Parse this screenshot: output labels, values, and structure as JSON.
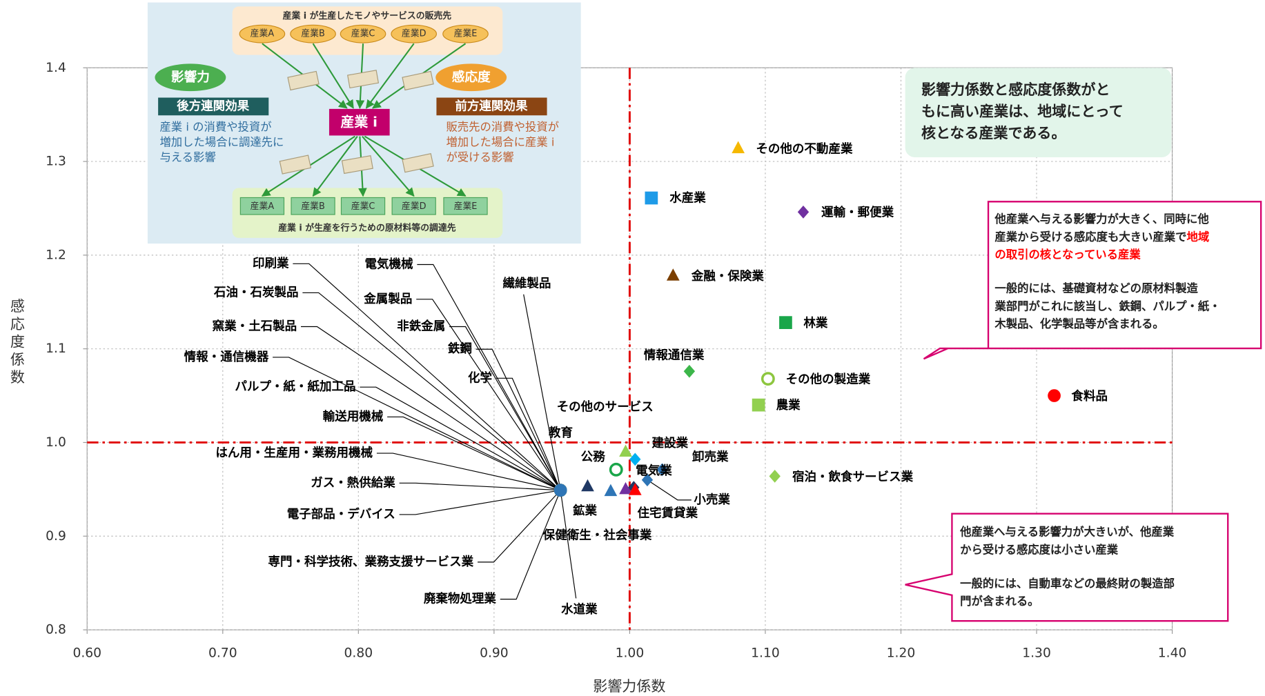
{
  "diagram": {
    "top_title": "産業 i が生産したモノやサービスの販売先",
    "top_nodes": [
      "産業A",
      "産業B",
      "産業C",
      "産業D",
      "産業E"
    ],
    "center": "産業 i",
    "bottom_nodes": [
      "産業A",
      "産業B",
      "産業C",
      "産業D",
      "産業E"
    ],
    "bottom_title": "産業 i が生産を行うための原材料等の調達先",
    "left": {
      "badge": "影響力",
      "heading": "後方連関効果",
      "text": [
        "産業 i の消費や投資が",
        "増加した場合に調達先に",
        "与える影響"
      ]
    },
    "right": {
      "badge": "感応度",
      "heading": "前方連関効果",
      "text": [
        "販売先の消費や投資が",
        "増加した場合に産業 i",
        "が受ける影響"
      ]
    }
  },
  "chart_data": {
    "type": "scatter",
    "xlabel": "影響力係数",
    "ylabel": "感応度係数",
    "xlim": [
      0.6,
      1.4
    ],
    "ylim": [
      0.8,
      1.4
    ],
    "xticks": [
      {
        "value": 0.6,
        "label": "0.60"
      },
      {
        "value": 0.7,
        "label": "0.70"
      },
      {
        "value": 0.8,
        "label": "0.80"
      },
      {
        "value": 0.9,
        "label": "0.90"
      },
      {
        "value": 1.0,
        "label": "1.00"
      },
      {
        "value": 1.1,
        "label": "1.10"
      },
      {
        "value": 1.2,
        "label": "1.20"
      },
      {
        "value": 1.3,
        "label": "1.30"
      },
      {
        "value": 1.4,
        "label": "1.40"
      }
    ],
    "yticks": [
      {
        "value": 0.8,
        "label": "0.8"
      },
      {
        "value": 0.9,
        "label": "0.9"
      },
      {
        "value": 1.0,
        "label": "1.0"
      },
      {
        "value": 1.1,
        "label": "1.1"
      },
      {
        "value": 1.2,
        "label": "1.2"
      },
      {
        "value": 1.3,
        "label": "1.3"
      },
      {
        "value": 1.4,
        "label": "1.4"
      }
    ],
    "grid": true,
    "ref_x": 1.0,
    "ref_y": 1.0,
    "ref_color": "#e00000",
    "points": [
      {
        "name": "その他の不動産業",
        "x": 1.08,
        "y": 1.314,
        "marker": "triangle",
        "color": "#f5b800"
      },
      {
        "name": "水産業",
        "x": 1.016,
        "y": 1.261,
        "marker": "square",
        "color": "#1e9be8"
      },
      {
        "name": "運輸・郵便業",
        "x": 1.128,
        "y": 1.246,
        "marker": "diamond",
        "color": "#7030a0"
      },
      {
        "name": "金融・保険業",
        "x": 1.032,
        "y": 1.178,
        "marker": "triangle",
        "color": "#7b3f00"
      },
      {
        "name": "林業",
        "x": 1.115,
        "y": 1.128,
        "marker": "square",
        "color": "#1aa64a"
      },
      {
        "name": "情報通信業",
        "x": 1.044,
        "y": 1.076,
        "marker": "diamond",
        "color": "#3cb64a"
      },
      {
        "name": "その他の製造業",
        "x": 1.102,
        "y": 1.068,
        "marker": "circle-open",
        "color": "#8dc63f"
      },
      {
        "name": "農業",
        "x": 1.095,
        "y": 1.04,
        "marker": "square",
        "color": "#92d050"
      },
      {
        "name": "食料品",
        "x": 1.313,
        "y": 1.05,
        "marker": "circle",
        "color": "#ff0000"
      },
      {
        "name": "宿泊・飲食サービス業",
        "x": 1.107,
        "y": 0.964,
        "marker": "diamond",
        "color": "#92d050"
      },
      {
        "name": "その他のサービス",
        "x": 0.997,
        "y": 0.99,
        "marker": "triangle",
        "color": "#92d050"
      },
      {
        "name": "建設業",
        "x": 1.004,
        "y": 0.982,
        "marker": "diamond",
        "color": "#00b0f0"
      },
      {
        "name": "卸売業",
        "x": 1.024,
        "y": 0.971,
        "marker": "diamond",
        "color": "#2e75b6"
      },
      {
        "name": "電気業",
        "x": 1.003,
        "y": 0.952,
        "marker": "diamond",
        "color": "#1f3864"
      },
      {
        "name": "教育",
        "x": 0.99,
        "y": 0.971,
        "marker": "circle-open",
        "color": "#1aa64a"
      },
      {
        "name": "公務",
        "x": 0.986,
        "y": 0.948,
        "marker": "triangle",
        "color": "#2e75b6"
      },
      {
        "name": "保健衛生・社会事業",
        "x": 0.997,
        "y": 0.95,
        "marker": "triangle",
        "color": "#7030a0"
      },
      {
        "name": "住宅賃貸業",
        "x": 1.004,
        "y": 0.949,
        "marker": "triangle",
        "color": "#ff0000"
      },
      {
        "name": "小売業",
        "x": 1.013,
        "y": 0.96,
        "marker": "diamond",
        "color": "#2e75b6"
      },
      {
        "name": "鉱業",
        "x": 0.969,
        "y": 0.953,
        "marker": "triangle",
        "color": "#1f3864"
      },
      {
        "name": "印刷業",
        "x": 0.949,
        "y": 0.949,
        "marker": "circle",
        "color": "#c00000"
      },
      {
        "name": "電気機械",
        "x": 0.949,
        "y": 0.949,
        "marker": "circle",
        "color": "#ffc000"
      },
      {
        "name": "石油・石炭製品",
        "x": 0.949,
        "y": 0.949,
        "marker": "circle",
        "color": "#7030a0"
      },
      {
        "name": "金属製品",
        "x": 0.949,
        "y": 0.949,
        "marker": "circle",
        "color": "#00b0f0"
      },
      {
        "name": "窯業・土石製品",
        "x": 0.949,
        "y": 0.949,
        "marker": "circle",
        "color": "#92d050"
      },
      {
        "name": "非鉄金属",
        "x": 0.949,
        "y": 0.949,
        "marker": "circle",
        "color": "#2e75b6"
      },
      {
        "name": "鉄鋼",
        "x": 0.949,
        "y": 0.949,
        "marker": "circle",
        "color": "#c00000"
      },
      {
        "name": "情報・通信機器",
        "x": 0.949,
        "y": 0.949,
        "marker": "circle",
        "color": "#ffc000"
      },
      {
        "name": "化学",
        "x": 0.949,
        "y": 0.949,
        "marker": "circle",
        "color": "#7030a0"
      },
      {
        "name": "パルプ・紙・紙加工品",
        "x": 0.949,
        "y": 0.949,
        "marker": "circle",
        "color": "#00b0f0"
      },
      {
        "name": "輸送用機械",
        "x": 0.949,
        "y": 0.949,
        "marker": "circle",
        "color": "#92d050"
      },
      {
        "name": "繊維製品",
        "x": 0.949,
        "y": 0.949,
        "marker": "circle",
        "color": "#2e75b6"
      },
      {
        "name": "はん用・生産用・業務用機械",
        "x": 0.949,
        "y": 0.949,
        "marker": "circle",
        "color": "#c00000"
      },
      {
        "name": "ガス・熱供給業",
        "x": 0.949,
        "y": 0.949,
        "marker": "circle",
        "color": "#ffc000"
      },
      {
        "name": "電子部品・デバイス",
        "x": 0.949,
        "y": 0.949,
        "marker": "circle",
        "color": "#7030a0"
      },
      {
        "name": "専門・科学技術、業務支援サービス業",
        "x": 0.949,
        "y": 0.949,
        "marker": "circle",
        "color": "#00b0f0"
      },
      {
        "name": "廃棄物処理業",
        "x": 0.949,
        "y": 0.949,
        "marker": "circle",
        "color": "#92d050"
      },
      {
        "name": "水道業",
        "x": 0.949,
        "y": 0.949,
        "marker": "circle",
        "color": "#2e75b6"
      }
    ]
  },
  "annotations": {
    "summary": [
      "影響力係数と感応度係数がと",
      "もに高い産業は、地域にとって",
      "核となる産業である。"
    ],
    "callout_upper": [
      [
        [
          {
            "text": "他産業へ与える影響力が大きく、同時に他"
          }
        ],
        [
          {
            "text": "産業から受ける感応度も大きい産業で"
          },
          {
            "text": "地域",
            "color": "#ff0000"
          }
        ],
        [
          {
            "text": "の取引の核となっている産業",
            "color": "#ff0000"
          }
        ]
      ],
      [
        [
          {
            "text": "一般的には、基礎資材などの原材料製造"
          }
        ],
        [
          {
            "text": "業部門がこれに該当し、鉄鋼、パルプ・紙・"
          }
        ],
        [
          {
            "text": "木製品、化学製品等が含まれる。"
          }
        ]
      ]
    ],
    "callout_lower": [
      [
        [
          {
            "text": "他産業へ与える影響力が大きいが、他産業"
          }
        ],
        [
          {
            "text": "から受ける感応度は小さい産業"
          }
        ]
      ],
      [
        [
          {
            "text": "一般的には、自動車などの最終財の製造部"
          }
        ],
        [
          {
            "text": "門が含まれる。"
          }
        ]
      ]
    ]
  }
}
